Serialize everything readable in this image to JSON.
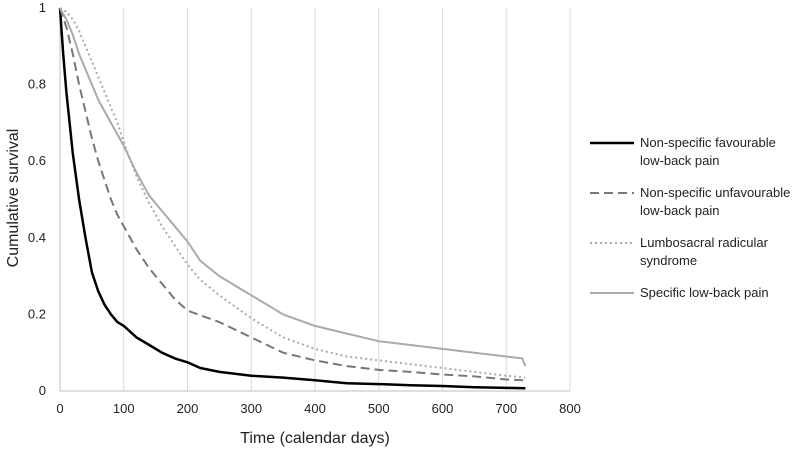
{
  "chart_data": {
    "type": "line",
    "xlabel": "Time (calendar days)",
    "ylabel": "Cumulative survival",
    "xlim": [
      0,
      800
    ],
    "ylim": [
      0,
      1
    ],
    "x_ticks": [
      "0",
      "100",
      "200",
      "300",
      "400",
      "500",
      "600",
      "700",
      "800"
    ],
    "y_ticks": [
      "0",
      "0.2",
      "0.4",
      "0.6",
      "0.8",
      "1"
    ],
    "grid": "vertical",
    "legend_position": "right",
    "series": [
      {
        "name": "Non-specific favourable low-back pain",
        "legend_lines": [
          "Non-specific favourable",
          "low-back pain"
        ],
        "style": "solid",
        "color": "#000000",
        "points": [
          [
            0,
            1.0
          ],
          [
            5,
            0.88
          ],
          [
            10,
            0.78
          ],
          [
            15,
            0.7
          ],
          [
            20,
            0.62
          ],
          [
            30,
            0.5
          ],
          [
            40,
            0.4
          ],
          [
            50,
            0.31
          ],
          [
            60,
            0.26
          ],
          [
            70,
            0.225
          ],
          [
            80,
            0.2
          ],
          [
            90,
            0.18
          ],
          [
            100,
            0.17
          ],
          [
            120,
            0.14
          ],
          [
            140,
            0.12
          ],
          [
            160,
            0.1
          ],
          [
            180,
            0.085
          ],
          [
            200,
            0.075
          ],
          [
            220,
            0.06
          ],
          [
            250,
            0.05
          ],
          [
            300,
            0.04
          ],
          [
            350,
            0.035
          ],
          [
            400,
            0.028
          ],
          [
            450,
            0.02
          ],
          [
            500,
            0.018
          ],
          [
            550,
            0.015
          ],
          [
            600,
            0.013
          ],
          [
            650,
            0.01
          ],
          [
            700,
            0.008
          ],
          [
            730,
            0.007
          ]
        ]
      },
      {
        "name": "Non-specific unfavourable low-back pain",
        "legend_lines": [
          "Non-specific unfavourable",
          "low-back pain"
        ],
        "style": "dashed",
        "color": "#777777",
        "points": [
          [
            0,
            1.0
          ],
          [
            10,
            0.95
          ],
          [
            20,
            0.88
          ],
          [
            30,
            0.8
          ],
          [
            40,
            0.73
          ],
          [
            50,
            0.66
          ],
          [
            60,
            0.6
          ],
          [
            70,
            0.55
          ],
          [
            80,
            0.5
          ],
          [
            90,
            0.46
          ],
          [
            100,
            0.43
          ],
          [
            120,
            0.37
          ],
          [
            140,
            0.32
          ],
          [
            160,
            0.28
          ],
          [
            180,
            0.24
          ],
          [
            200,
            0.21
          ],
          [
            250,
            0.18
          ],
          [
            300,
            0.14
          ],
          [
            350,
            0.1
          ],
          [
            400,
            0.08
          ],
          [
            450,
            0.065
          ],
          [
            500,
            0.055
          ],
          [
            550,
            0.05
          ],
          [
            600,
            0.043
          ],
          [
            650,
            0.038
          ],
          [
            700,
            0.03
          ],
          [
            730,
            0.028
          ]
        ]
      },
      {
        "name": "Lumbosacral radicular syndrome",
        "legend_lines": [
          "Lumbosacral radicular",
          "syndrome"
        ],
        "style": "dotted",
        "color": "#aaaaaa",
        "points": [
          [
            0,
            1.0
          ],
          [
            10,
            0.99
          ],
          [
            20,
            0.97
          ],
          [
            30,
            0.94
          ],
          [
            40,
            0.9
          ],
          [
            50,
            0.86
          ],
          [
            60,
            0.82
          ],
          [
            70,
            0.78
          ],
          [
            80,
            0.74
          ],
          [
            90,
            0.7
          ],
          [
            100,
            0.65
          ],
          [
            120,
            0.56
          ],
          [
            140,
            0.49
          ],
          [
            160,
            0.43
          ],
          [
            180,
            0.38
          ],
          [
            200,
            0.33
          ],
          [
            220,
            0.29
          ],
          [
            250,
            0.25
          ],
          [
            300,
            0.19
          ],
          [
            350,
            0.14
          ],
          [
            400,
            0.11
          ],
          [
            450,
            0.09
          ],
          [
            500,
            0.08
          ],
          [
            550,
            0.07
          ],
          [
            600,
            0.06
          ],
          [
            650,
            0.05
          ],
          [
            700,
            0.04
          ],
          [
            730,
            0.035
          ]
        ]
      },
      {
        "name": "Specific low-back pain",
        "legend_lines": [
          "Specific low-back pain"
        ],
        "style": "solid",
        "color": "#aaaaaa",
        "points": [
          [
            0,
            1.0
          ],
          [
            10,
            0.97
          ],
          [
            20,
            0.93
          ],
          [
            30,
            0.88
          ],
          [
            40,
            0.84
          ],
          [
            50,
            0.8
          ],
          [
            60,
            0.76
          ],
          [
            70,
            0.73
          ],
          [
            80,
            0.7
          ],
          [
            90,
            0.67
          ],
          [
            100,
            0.64
          ],
          [
            120,
            0.57
          ],
          [
            140,
            0.51
          ],
          [
            160,
            0.47
          ],
          [
            180,
            0.43
          ],
          [
            200,
            0.39
          ],
          [
            220,
            0.34
          ],
          [
            250,
            0.3
          ],
          [
            280,
            0.27
          ],
          [
            300,
            0.25
          ],
          [
            330,
            0.22
          ],
          [
            350,
            0.2
          ],
          [
            400,
            0.17
          ],
          [
            450,
            0.15
          ],
          [
            500,
            0.13
          ],
          [
            550,
            0.12
          ],
          [
            600,
            0.11
          ],
          [
            650,
            0.1
          ],
          [
            700,
            0.09
          ],
          [
            725,
            0.085
          ],
          [
            730,
            0.065
          ]
        ]
      }
    ]
  }
}
